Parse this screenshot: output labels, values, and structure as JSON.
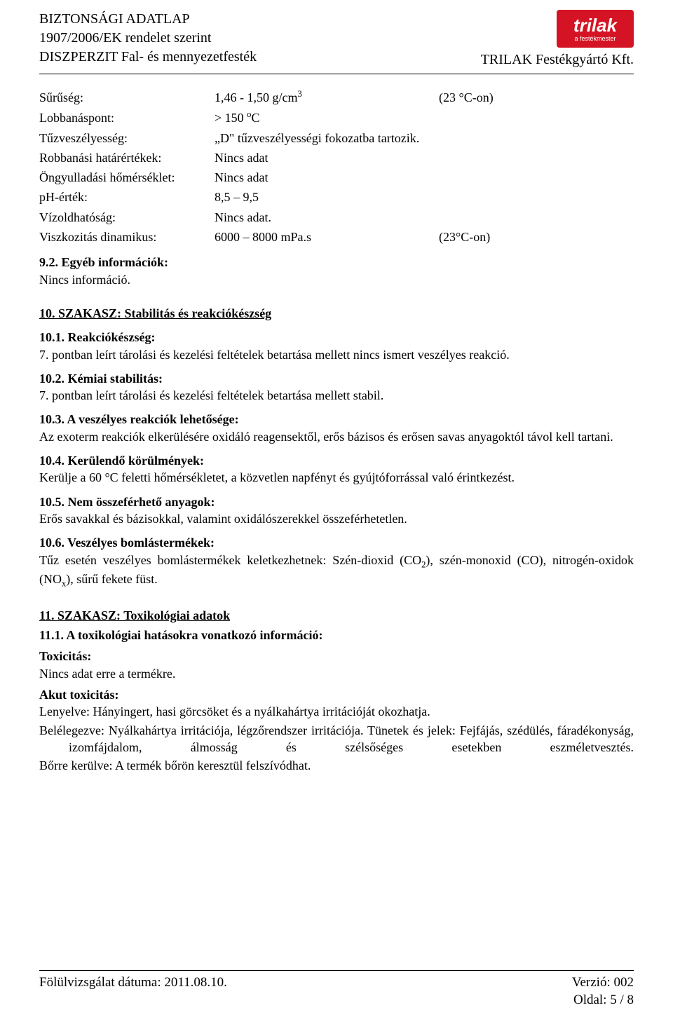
{
  "header": {
    "left_line1": "BIZTONSÁGI ADATLAP",
    "left_line2": "1907/2006/EK rendelet szerint",
    "left_line3": "DISZPERZIT Fal- és mennyezetfesték",
    "right_company": "TRILAK Festékgyártó Kft.",
    "logo_brand": "trilak",
    "logo_tagline": "a festékmester"
  },
  "props": [
    {
      "label": "Sűrűség:",
      "value_html": "1,46 - 1,50 g/cm<sup>3</sup>",
      "extra": "(23 °C-on)"
    },
    {
      "label": "Lobbanáspont:",
      "value_html": "> 150 <sup>o</sup>C",
      "extra": ""
    },
    {
      "label": "Tűzveszélyesség:",
      "value_html": "„D\" tűzveszélyességi fokozatba tartozik.",
      "extra": ""
    },
    {
      "label": "Robbanási határértékek:",
      "value_html": "Nincs adat",
      "extra": ""
    },
    {
      "label": "Öngyulladási hőmérséklet:",
      "value_html": "Nincs adat",
      "extra": ""
    },
    {
      "label": "pH-érték:",
      "value_html": "8,5 – 9,5",
      "extra": ""
    },
    {
      "label": "Vízoldhatóság:",
      "value_html": "Nincs adat.",
      "extra": ""
    },
    {
      "label": "Viszkozitás dinamikus:",
      "value_html": "6000 – 8000 mPa.s",
      "extra": "(23°C-on)"
    }
  ],
  "sec92": {
    "title": "9.2. Egyéb információk:",
    "body": "Nincs információ."
  },
  "sec10": {
    "title": "10. SZAKASZ: Stabilitás és reakciókészség",
    "s1": {
      "title": "10.1. Reakciókészség:",
      "body": "7. pontban leírt tárolási és kezelési feltételek betartása mellett nincs ismert veszélyes reakció."
    },
    "s2": {
      "title": "10.2. Kémiai stabilitás:",
      "body": "7. pontban leírt tárolási és kezelési feltételek betartása mellett stabil."
    },
    "s3": {
      "title": "10.3. A veszélyes reakciók lehetősége:",
      "body": "Az exoterm reakciók elkerülésére oxidáló reagensektől, erős bázisos és erősen savas anyagoktól távol kell tartani."
    },
    "s4": {
      "title": "10.4. Kerülendő körülmények:",
      "body": "Kerülje a 60 °C feletti hőmérsékletet, a közvetlen napfényt és gyújtóforrással való érintkezést."
    },
    "s5": {
      "title": "10.5. Nem összeférhető anyagok:",
      "body": "Erős savakkal és bázisokkal, valamint oxidálószerekkel összeférhetetlen."
    },
    "s6": {
      "title": "10.6. Veszélyes bomlástermékek:",
      "body_html": "Tűz esetén veszélyes bomlástermékek keletkezhetnek: Szén-dioxid (CO<sub>2</sub>), szén-monoxid (CO), nitrogén-oxidok (NO<sub>x</sub>), sűrű fekete füst."
    }
  },
  "sec11": {
    "title": "11. SZAKASZ: Toxikológiai adatok",
    "s1_title": "11.1. A toxikológiai hatásokra vonatkozó információ:",
    "tox_label": "Toxicitás:",
    "tox_body": "Nincs adat erre a termékre.",
    "akut_label": "Akut toxicitás:",
    "akut_items": [
      {
        "prefix": "Lenyelve:",
        "rest": " Hányingert, hasi görcsöket és a nyálkahártya irritációját okozhatja."
      },
      {
        "prefix": "Belélegezve:",
        "rest": " Nyálkahártya irritációja, légzőrendszer irritációja. Tünetek és jelek: Fejfájás, szédülés, fáradékonyság, izomfájdalom, álmosság és szélsőséges esetekben eszméletvesztés."
      },
      {
        "prefix": "Bőrre kerülve:",
        "rest": " A termék bőrön keresztül felszívódhat."
      }
    ]
  },
  "footer": {
    "left": "Fölülvizsgálat dátuma: 2011.08.10.",
    "right1": "Verzió: 002",
    "right2": "Oldal: 5 / 8"
  }
}
